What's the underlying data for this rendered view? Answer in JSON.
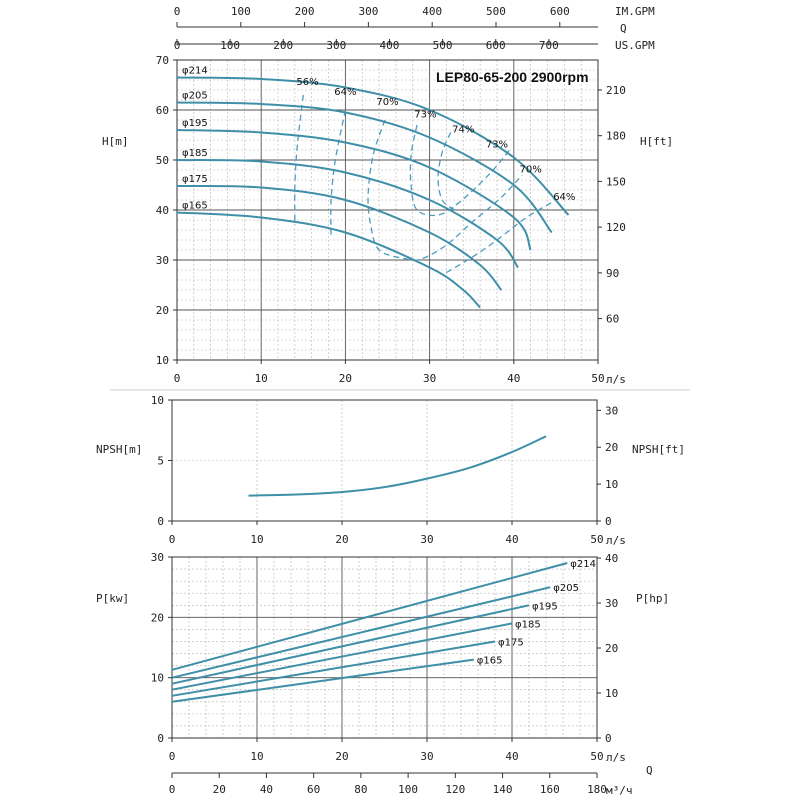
{
  "chart_data": {
    "title": "LEP80-65-200 2900rpm",
    "top_axes": {
      "label": "Q",
      "imperial": {
        "unit": "IM.GPM",
        "ticks": [
          0,
          100,
          200,
          300,
          400,
          500,
          600
        ]
      },
      "us": {
        "unit": "US.GPM",
        "ticks": [
          0,
          100,
          200,
          300,
          400,
          500,
          600,
          700
        ]
      }
    },
    "head_chart": {
      "type": "line",
      "xlabel": "л/s",
      "ylabel": "H[m]",
      "ylabel_right": "H[ft]",
      "xlim": [
        0,
        50
      ],
      "ylim": [
        10,
        70
      ],
      "x_ticks": [
        0,
        10,
        20,
        30,
        40,
        50
      ],
      "y_ticks": [
        10,
        20,
        30,
        40,
        50,
        60,
        70
      ],
      "y_ticks_right": [
        60,
        90,
        120,
        150,
        180,
        210
      ],
      "series": [
        {
          "name": "φ214",
          "points": [
            [
              0,
              66.5
            ],
            [
              10,
              66.2
            ],
            [
              20,
              64.5
            ],
            [
              30,
              60
            ],
            [
              40,
              50.5
            ],
            [
              46.5,
              39
            ]
          ]
        },
        {
          "name": "φ205",
          "points": [
            [
              0,
              61.5
            ],
            [
              10,
              61.2
            ],
            [
              20,
              59.5
            ],
            [
              30,
              54.5
            ],
            [
              40,
              45
            ],
            [
              44.5,
              35.5
            ]
          ]
        },
        {
          "name": "φ195",
          "points": [
            [
              0,
              56
            ],
            [
              10,
              55.5
            ],
            [
              20,
              53.5
            ],
            [
              30,
              48.5
            ],
            [
              40,
              38.5
            ],
            [
              42,
              32
            ]
          ]
        },
        {
          "name": "φ185",
          "points": [
            [
              0,
              50
            ],
            [
              10,
              49.7
            ],
            [
              20,
              47.5
            ],
            [
              30,
              42
            ],
            [
              38,
              34
            ],
            [
              40.5,
              28.5
            ]
          ]
        },
        {
          "name": "φ175",
          "points": [
            [
              0,
              44.8
            ],
            [
              10,
              44.5
            ],
            [
              20,
              42
            ],
            [
              30,
              35.5
            ],
            [
              36,
              29
            ],
            [
              38.5,
              24
            ]
          ]
        },
        {
          "name": "φ165",
          "points": [
            [
              0,
              39.5
            ],
            [
              10,
              38.5
            ],
            [
              20,
              35.5
            ],
            [
              30,
              28.5
            ],
            [
              34,
              24
            ],
            [
              36,
              20.5
            ]
          ]
        }
      ],
      "efficiency": [
        {
          "label": "56%",
          "points": [
            [
              15,
              63
            ],
            [
              14.3,
              53
            ],
            [
              14,
              45
            ],
            [
              14,
              37
            ]
          ]
        },
        {
          "label": "64%",
          "points": [
            [
              20,
              60
            ],
            [
              18.8,
              50
            ],
            [
              18.3,
              42
            ],
            [
              18.3,
              35
            ]
          ]
        },
        {
          "label": "70%",
          "points": [
            [
              24.7,
              58
            ],
            [
              23.3,
              51
            ],
            [
              22.7,
              43
            ],
            [
              23,
              37
            ],
            [
              24,
              32
            ],
            [
              27,
              30.3
            ],
            [
              29,
              30.2
            ],
            [
              32,
              33
            ],
            [
              35,
              37.5
            ],
            [
              38.5,
              42.5
            ],
            [
              41,
              47
            ]
          ]
        },
        {
          "label": "73%",
          "points": [
            [
              28.5,
              57
            ],
            [
              27.8,
              51
            ],
            [
              27.8,
              45
            ],
            [
              28.5,
              40
            ],
            [
              31,
              39
            ],
            [
              33.5,
              41.5
            ],
            [
              37,
              47
            ],
            [
              39.5,
              52
            ]
          ]
        },
        {
          "label": "74%",
          "points": [
            [
              32.5,
              55.5
            ],
            [
              31.5,
              51.5
            ],
            [
              31,
              46.5
            ],
            [
              31.5,
              42
            ],
            [
              33,
              40
            ]
          ]
        },
        {
          "label": "64%",
          "points": [
            [
              32,
              27.5
            ],
            [
              35,
              30.5
            ],
            [
              38,
              34
            ],
            [
              41.5,
              38.5
            ],
            [
              44.5,
              41.5
            ]
          ]
        }
      ],
      "efficiency_labels": [
        {
          "text": "56%",
          "x": 15.5,
          "y": 65
        },
        {
          "text": "64%",
          "x": 20,
          "y": 63
        },
        {
          "text": "70%",
          "x": 25,
          "y": 61
        },
        {
          "text": "73%",
          "x": 29.5,
          "y": 58.5
        },
        {
          "text": "74%",
          "x": 34,
          "y": 55.5
        },
        {
          "text": "73%",
          "x": 38,
          "y": 52.5
        },
        {
          "text": "70%",
          "x": 42,
          "y": 47.5
        },
        {
          "text": "64%",
          "x": 46,
          "y": 42
        }
      ]
    },
    "npsh_chart": {
      "type": "line",
      "xlabel": "л/s",
      "ylabel": "NPSH[m]",
      "ylabel_right": "NPSH[ft]",
      "xlim": [
        0,
        50
      ],
      "ylim": [
        0,
        10
      ],
      "x_ticks": [
        0,
        10,
        20,
        30,
        40,
        50
      ],
      "y_ticks": [
        0,
        5,
        10
      ],
      "y_ticks_right": [
        0,
        10,
        20,
        30
      ],
      "series": [
        {
          "name": "",
          "points": [
            [
              9,
              2.1
            ],
            [
              15,
              2.2
            ],
            [
              20,
              2.4
            ],
            [
              25,
              2.8
            ],
            [
              30,
              3.5
            ],
            [
              35,
              4.4
            ],
            [
              40,
              5.7
            ],
            [
              44,
              7.0
            ]
          ]
        }
      ]
    },
    "power_chart": {
      "type": "line",
      "xlabel": "л/s",
      "ylabel": "P[kw]",
      "ylabel_right": "P[hp]",
      "xlim": [
        0,
        50
      ],
      "ylim": [
        0,
        30
      ],
      "x_ticks": [
        0,
        10,
        20,
        30,
        40,
        50
      ],
      "y_ticks": [
        0,
        10,
        20,
        30
      ],
      "y_ticks_right": [
        0,
        10,
        20,
        30,
        40
      ],
      "series": [
        {
          "name": "φ214",
          "points": [
            [
              0,
              11.3
            ],
            [
              46.5,
              29
            ]
          ]
        },
        {
          "name": "φ205",
          "points": [
            [
              0,
              10
            ],
            [
              44.5,
              25
            ]
          ]
        },
        {
          "name": "φ195",
          "points": [
            [
              0,
              9
            ],
            [
              42,
              22
            ]
          ]
        },
        {
          "name": "φ185",
          "points": [
            [
              0,
              8
            ],
            [
              40,
              19
            ]
          ]
        },
        {
          "name": "φ175",
          "points": [
            [
              0,
              7
            ],
            [
              38,
              16
            ]
          ]
        },
        {
          "name": "φ165",
          "points": [
            [
              0,
              6
            ],
            [
              35.5,
              13
            ]
          ]
        }
      ]
    },
    "bottom_axis": {
      "label": "Q",
      "unit": "м³/ч",
      "ticks": [
        0,
        20,
        40,
        60,
        80,
        100,
        120,
        140,
        160,
        180
      ]
    }
  }
}
